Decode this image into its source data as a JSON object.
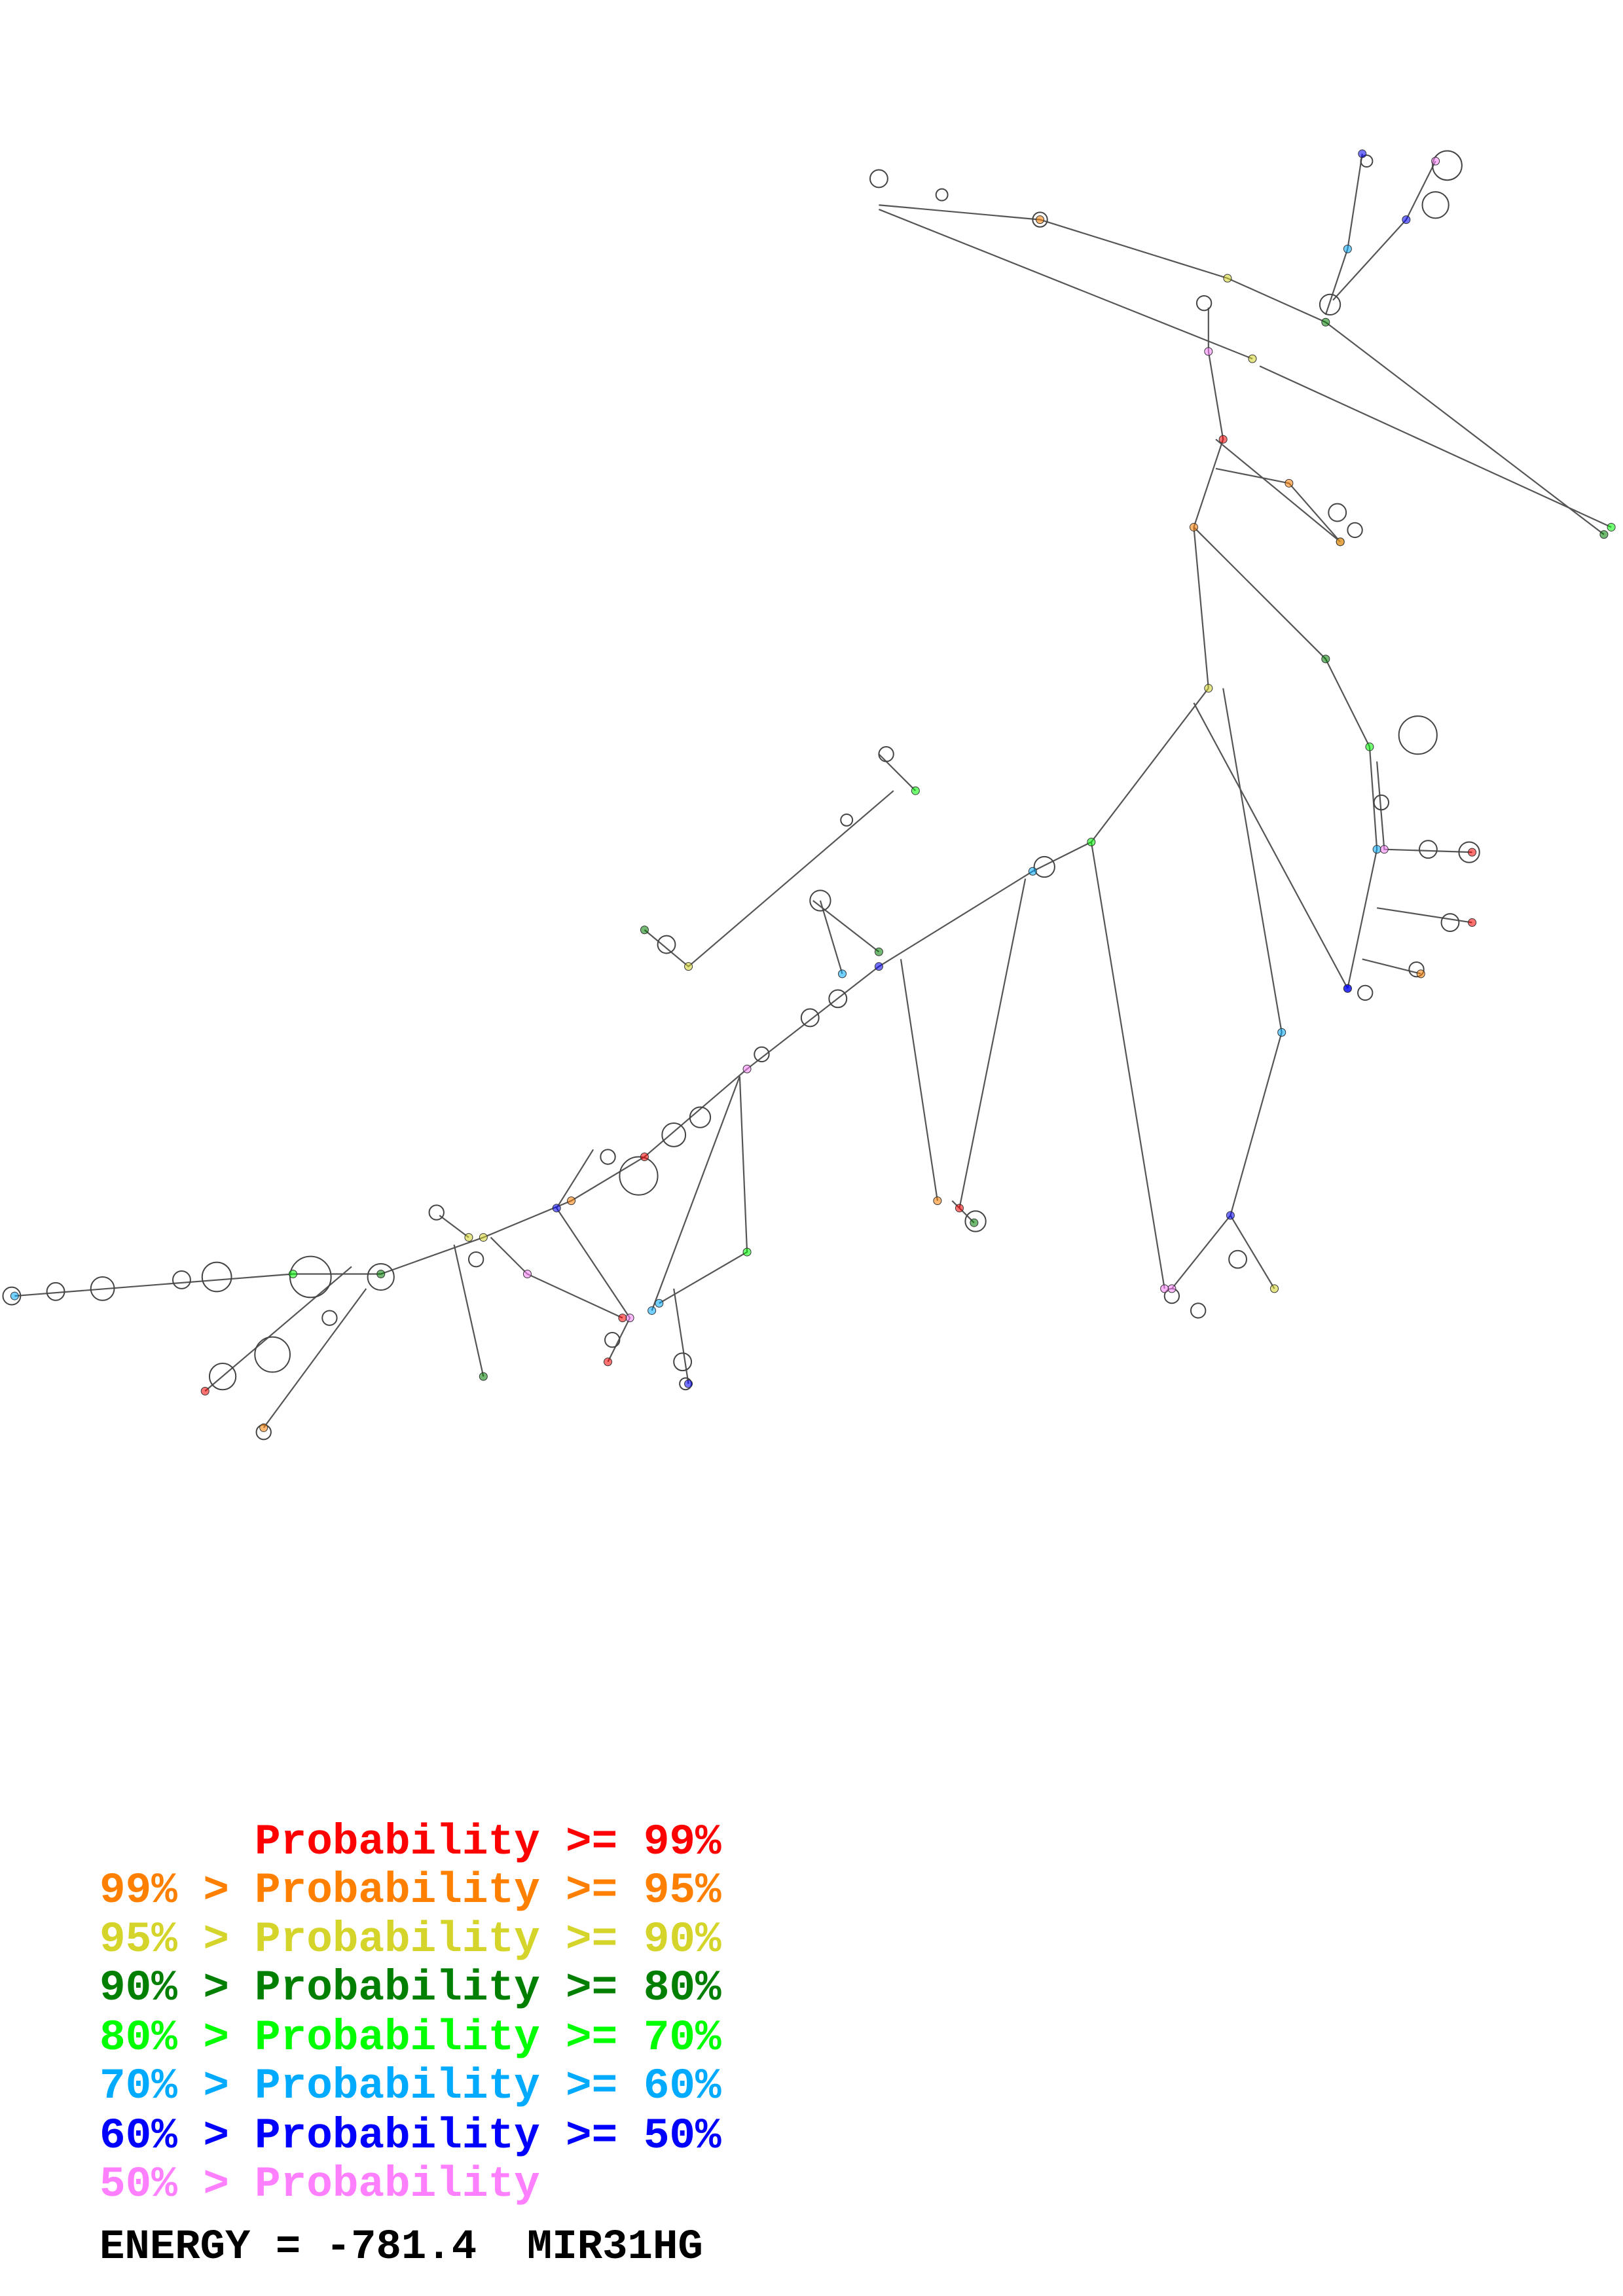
{
  "legend": [
    {
      "prefix": "   ",
      "label": "Probability",
      "suffix": ">= 99%",
      "color": "#ff0000"
    },
    {
      "prefix": "99% >",
      "label": "Probability",
      "suffix": ">= 95%",
      "color": "#ff8000"
    },
    {
      "prefix": "95% >",
      "label": "Probability",
      "suffix": ">= 90%",
      "color": "#d4d42a"
    },
    {
      "prefix": "90% >",
      "label": "Probability",
      "suffix": ">= 80%",
      "color": "#007f00"
    },
    {
      "prefix": "80% >",
      "label": "Probability",
      "suffix": ">= 70%",
      "color": "#00ff00"
    },
    {
      "prefix": "70% >",
      "label": "Probability",
      "suffix": ">= 60%",
      "color": "#00aaff"
    },
    {
      "prefix": "60% >",
      "label": "Probability",
      "suffix": ">= 50%",
      "color": "#0000ff"
    },
    {
      "prefix": "50% >",
      "label": "Probability",
      "suffix": "",
      "color": "#ff80ff"
    }
  ],
  "energy": {
    "label": "ENERGY =",
    "value": "-781.4",
    "name": "MIR31HG"
  },
  "diagram": {
    "type": "RNA secondary structure",
    "backbone_color": "#555555"
  }
}
